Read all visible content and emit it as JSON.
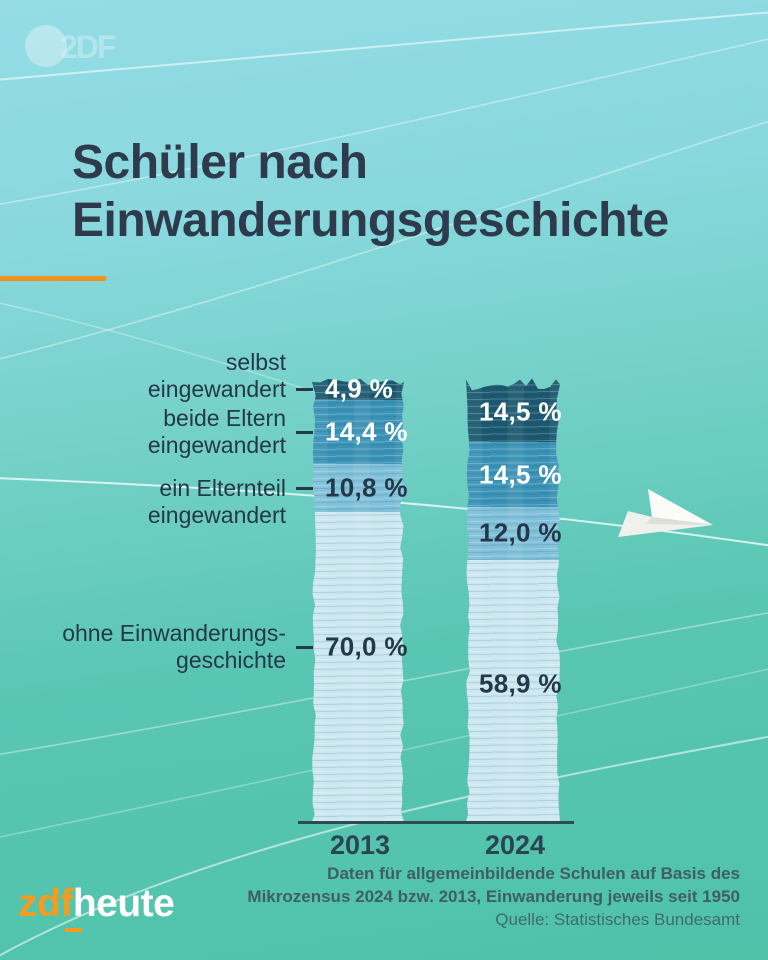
{
  "header": {
    "brand_watermark": "2DF",
    "title_line1": "Schüler nach",
    "title_line2": "Einwanderungsgeschichte"
  },
  "chart_data": {
    "type": "bar",
    "stacked": true,
    "unit": "%",
    "title": "Schüler nach Einwanderungsgeschichte",
    "categories": [
      "2013",
      "2024"
    ],
    "series": [
      {
        "name": "selbst eingewandert",
        "values": [
          4.9,
          14.5
        ],
        "display": [
          "4,9 %",
          "14,5 %"
        ],
        "color": "#1c5970",
        "label_color": "#ffffff"
      },
      {
        "name": "beide Eltern eingewandert",
        "values": [
          14.4,
          14.5
        ],
        "display": [
          "14,4 %",
          "14,5 %"
        ],
        "color": "#3a93b7",
        "label_color": "#ffffff"
      },
      {
        "name": "ein Elternteil eingewandert",
        "values": [
          10.8,
          12.0
        ],
        "display": [
          "10,8 %",
          "12,0 %"
        ],
        "color": "#7fc0da",
        "label_color": "#24384a"
      },
      {
        "name": "ohne Einwanderungsgeschichte",
        "values": [
          70.0,
          58.9
        ],
        "display": [
          "70,0 %",
          "58,9 %"
        ],
        "color": "#cbe7f1",
        "label_color": "#24384a"
      }
    ],
    "side_labels": [
      {
        "lines": [
          "selbst",
          "eingewandert"
        ],
        "series_index": 0
      },
      {
        "lines": [
          "beide Eltern",
          "eingewandert"
        ],
        "series_index": 1
      },
      {
        "lines": [
          "ein Elternteil",
          "eingewandert"
        ],
        "series_index": 2
      },
      {
        "lines": [
          "ohne Einwanderungs-",
          "geschichte"
        ],
        "series_index": 3
      }
    ],
    "ylim": [
      0,
      100
    ],
    "grid": false,
    "legend_position": "left-labels"
  },
  "footer": {
    "logo": {
      "zdf": "zdf",
      "heute": "heute"
    },
    "note_line1": "Daten für allgemeinbildende Schulen auf Basis des",
    "note_line2": "Mikrozensus 2024 bzw. 2013, Einwanderung jeweils seit 1950",
    "source": "Quelle: Statistisches Bundesamt"
  },
  "colors": {
    "background_top": "#95dce6",
    "background_bottom": "#4fc2aa",
    "title": "#2d3b4c",
    "accent_orange": "#f0921e",
    "axis": "#2f4c52",
    "footnote": "#3f5e66"
  }
}
